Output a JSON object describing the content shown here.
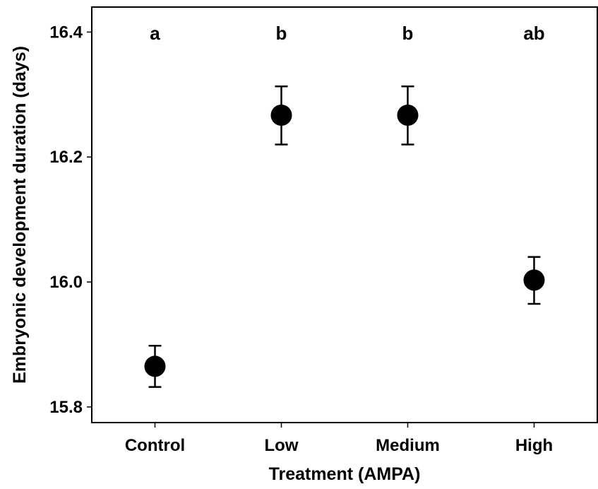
{
  "chart_data": {
    "type": "scatter",
    "title": "",
    "xlabel": "Treatment (AMPA)",
    "ylabel": "Embryonic development duration (days)",
    "categories": [
      "Control",
      "Low",
      "Medium",
      "High"
    ],
    "values": [
      15.865,
      16.267,
      16.267,
      16.003
    ],
    "error_lower": [
      15.832,
      16.22,
      16.22,
      15.965
    ],
    "error_upper": [
      15.898,
      16.313,
      16.313,
      16.04
    ],
    "significance_labels": [
      "a",
      "b",
      "b",
      "ab"
    ],
    "ylim": [
      15.775,
      16.44
    ],
    "yticks": [
      15.8,
      16.0,
      16.2,
      16.4
    ],
    "ytick_labels": [
      "15.8",
      "16.0",
      "16.2",
      "16.4"
    ],
    "grid": false,
    "point_color": "#000000"
  }
}
